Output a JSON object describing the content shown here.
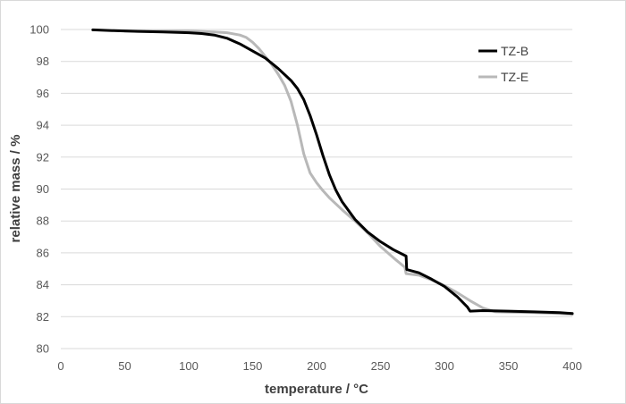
{
  "chart_data": {
    "type": "line",
    "title": "",
    "xlabel": "temperature / °C",
    "ylabel": "relative mass / %",
    "xlim": [
      0,
      400
    ],
    "ylim": [
      80,
      100
    ],
    "x_ticks": [
      0,
      50,
      100,
      150,
      200,
      250,
      300,
      350,
      400
    ],
    "y_ticks": [
      80,
      82,
      84,
      86,
      88,
      90,
      92,
      94,
      96,
      98,
      100
    ],
    "grid": "horizontal",
    "legend_position": "top-right",
    "series": [
      {
        "name": "TZ-B",
        "color": "#000000",
        "points": [
          [
            25,
            99.98
          ],
          [
            40,
            99.93
          ],
          [
            60,
            99.88
          ],
          [
            80,
            99.85
          ],
          [
            100,
            99.8
          ],
          [
            110,
            99.75
          ],
          [
            120,
            99.65
          ],
          [
            130,
            99.45
          ],
          [
            140,
            99.1
          ],
          [
            150,
            98.65
          ],
          [
            160,
            98.2
          ],
          [
            170,
            97.55
          ],
          [
            180,
            96.8
          ],
          [
            185,
            96.3
          ],
          [
            190,
            95.6
          ],
          [
            195,
            94.6
          ],
          [
            200,
            93.4
          ],
          [
            205,
            92.1
          ],
          [
            210,
            90.9
          ],
          [
            215,
            89.95
          ],
          [
            220,
            89.2
          ],
          [
            230,
            88.1
          ],
          [
            240,
            87.3
          ],
          [
            250,
            86.7
          ],
          [
            260,
            86.2
          ],
          [
            270,
            85.8
          ],
          [
            270.5,
            84.95
          ],
          [
            280,
            84.75
          ],
          [
            290,
            84.35
          ],
          [
            300,
            83.9
          ],
          [
            310,
            83.25
          ],
          [
            318,
            82.6
          ],
          [
            320,
            82.35
          ],
          [
            330,
            82.38
          ],
          [
            350,
            82.35
          ],
          [
            370,
            82.3
          ],
          [
            390,
            82.25
          ],
          [
            400,
            82.2
          ]
        ]
      },
      {
        "name": "TZ-E",
        "color": "#b8b8b8",
        "points": [
          [
            50,
            99.9
          ],
          [
            80,
            99.9
          ],
          [
            100,
            99.9
          ],
          [
            120,
            99.85
          ],
          [
            130,
            99.8
          ],
          [
            140,
            99.65
          ],
          [
            145,
            99.5
          ],
          [
            150,
            99.2
          ],
          [
            155,
            98.8
          ],
          [
            160,
            98.3
          ],
          [
            165,
            97.8
          ],
          [
            170,
            97.2
          ],
          [
            175,
            96.5
          ],
          [
            180,
            95.5
          ],
          [
            185,
            94.0
          ],
          [
            190,
            92.2
          ],
          [
            195,
            91.0
          ],
          [
            200,
            90.4
          ],
          [
            205,
            89.9
          ],
          [
            210,
            89.45
          ],
          [
            220,
            88.7
          ],
          [
            230,
            88.0
          ],
          [
            240,
            87.25
          ],
          [
            250,
            86.4
          ],
          [
            260,
            85.7
          ],
          [
            269,
            85.1
          ],
          [
            270,
            84.7
          ],
          [
            280,
            84.6
          ],
          [
            290,
            84.3
          ],
          [
            300,
            83.95
          ],
          [
            310,
            83.5
          ],
          [
            320,
            83.0
          ],
          [
            330,
            82.55
          ],
          [
            340,
            82.3
          ],
          [
            350,
            82.28
          ],
          [
            370,
            82.25
          ],
          [
            390,
            82.2
          ],
          [
            400,
            82.15
          ]
        ]
      }
    ]
  }
}
